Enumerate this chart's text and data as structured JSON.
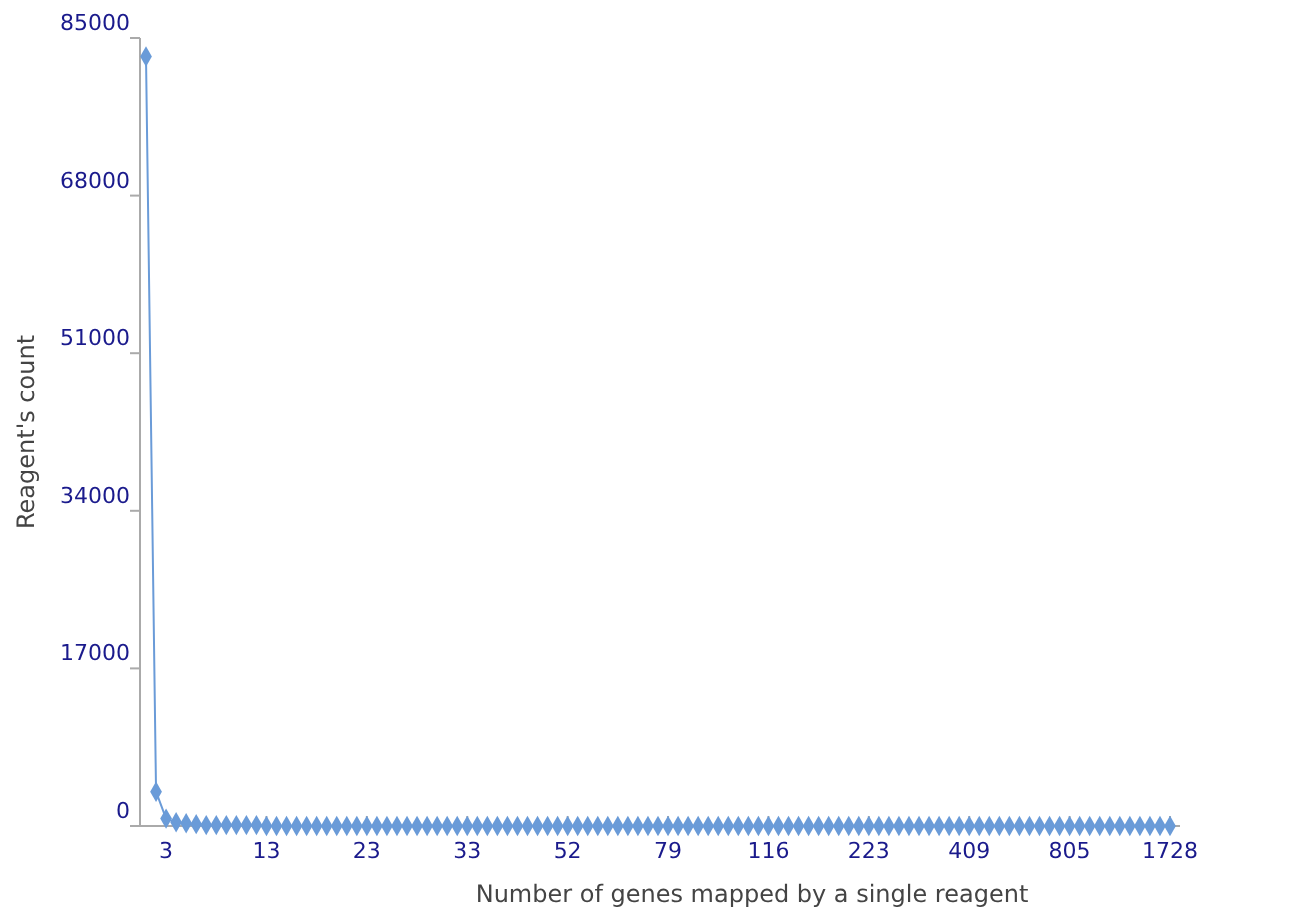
{
  "chart_data": {
    "type": "line",
    "xlabel": "Number of genes mapped by a single reagent",
    "ylabel": "Reagent's count",
    "categories": [
      null,
      null,
      "3",
      null,
      null,
      null,
      null,
      null,
      null,
      null,
      null,
      null,
      "13",
      null,
      null,
      null,
      null,
      null,
      null,
      null,
      null,
      null,
      "23",
      null,
      null,
      null,
      null,
      null,
      null,
      null,
      null,
      null,
      "33",
      null,
      null,
      null,
      null,
      null,
      null,
      null,
      null,
      null,
      "52",
      null,
      null,
      null,
      null,
      null,
      null,
      null,
      null,
      null,
      "79",
      null,
      null,
      null,
      null,
      null,
      null,
      null,
      null,
      null,
      "116",
      null,
      null,
      null,
      null,
      null,
      null,
      null,
      null,
      null,
      "223",
      null,
      null,
      null,
      null,
      null,
      null,
      null,
      null,
      null,
      "409",
      null,
      null,
      null,
      null,
      null,
      null,
      null,
      null,
      null,
      "805",
      null,
      null,
      null,
      null,
      null,
      null,
      null,
      null,
      null,
      "1728"
    ],
    "series": [
      {
        "color": "#6a9bd8",
        "values": [
          83000,
          3700,
          800,
          400,
          300,
          200,
          100,
          100,
          100,
          100,
          100,
          100,
          0,
          0,
          0,
          0,
          0,
          0,
          0,
          0,
          0,
          0,
          0,
          0,
          0,
          0,
          0,
          0,
          0,
          0,
          0,
          0,
          0,
          0,
          0,
          0,
          0,
          0,
          0,
          0,
          0,
          0,
          0,
          0,
          0,
          0,
          0,
          0,
          0,
          0,
          0,
          0,
          0,
          0,
          0,
          0,
          0,
          0,
          0,
          0,
          0,
          0,
          0,
          0,
          0,
          0,
          0,
          0,
          0,
          0,
          0,
          0,
          0,
          0,
          0,
          0,
          0,
          0,
          0,
          0,
          0,
          0,
          0,
          0,
          0,
          0,
          0,
          0,
          0,
          0,
          0,
          0,
          0,
          0,
          0,
          0,
          0,
          0,
          0,
          0,
          0,
          0,
          0
        ]
      }
    ],
    "ylim": [
      0,
      85000
    ],
    "yticks": [
      0,
      17000,
      34000,
      51000,
      68000,
      85000
    ],
    "grid": false,
    "marker": "diamond",
    "line_style": "solid"
  }
}
